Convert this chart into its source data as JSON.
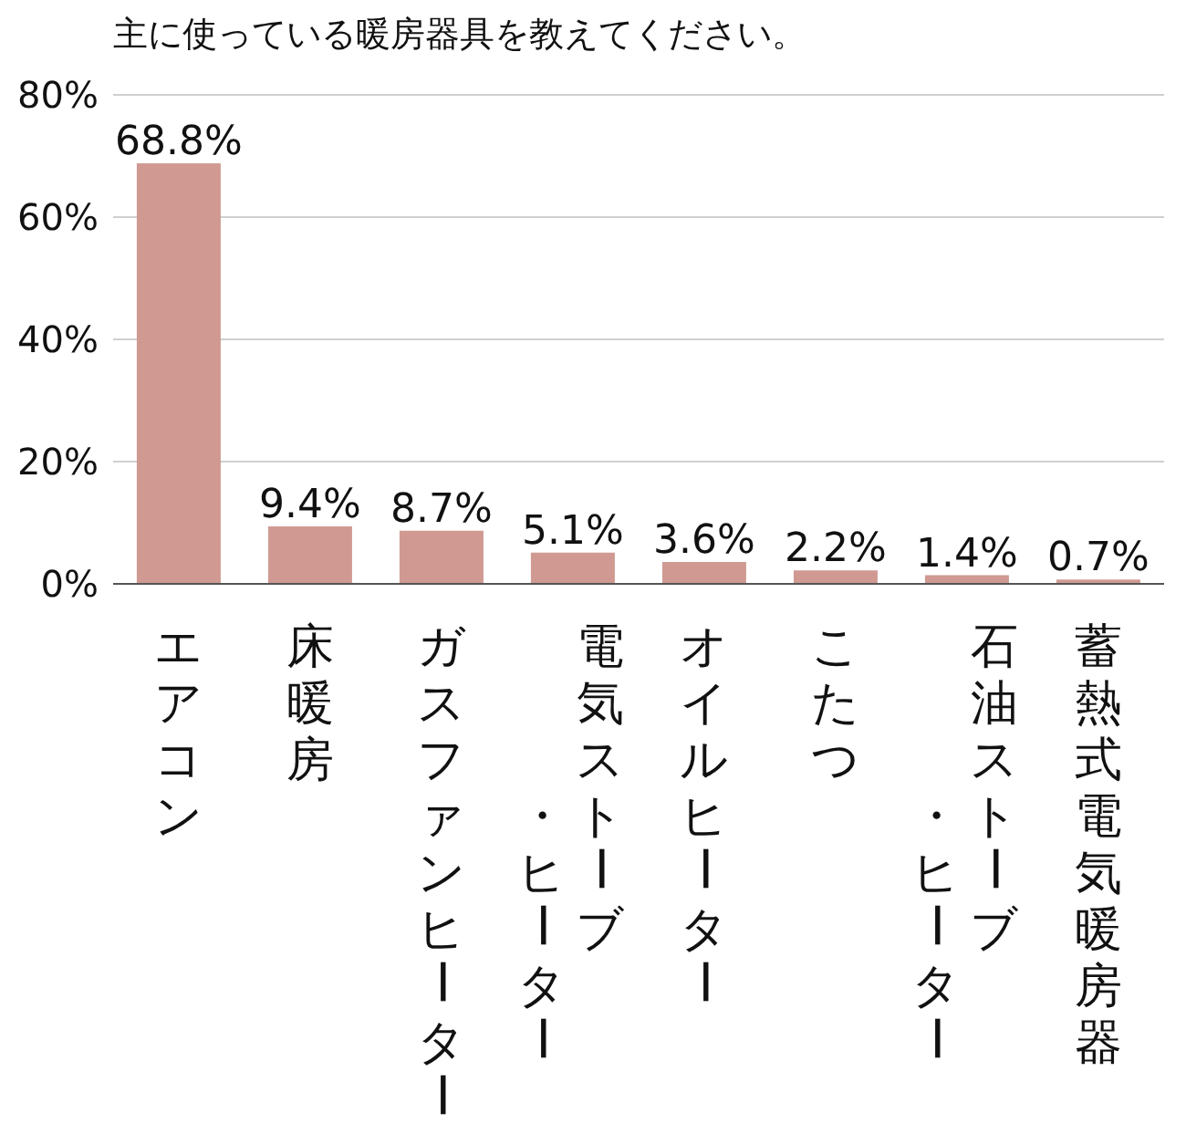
{
  "chart_data": {
    "type": "bar",
    "title": "主に使っている暖房器具を教えてください。",
    "categories": [
      "エアコン",
      "床暖房",
      "ガスファンヒーター",
      "電気ストーブ・ヒーター",
      "オイルヒーター",
      "こたつ",
      "石油ストーブ・ヒーター",
      "蓄熱式電気暖房器"
    ],
    "values": [
      68.8,
      9.4,
      8.7,
      5.1,
      3.6,
      2.2,
      1.4,
      0.7
    ],
    "value_labels": [
      "68.8%",
      "9.4%",
      "8.7%",
      "5.1%",
      "3.6%",
      "2.2%",
      "1.4%",
      "0.7%"
    ],
    "color": "#d09a93",
    "ylim": [
      0,
      80
    ],
    "yticks": [
      {
        "value": 0,
        "label": "0%"
      },
      {
        "value": 20,
        "label": "20%"
      },
      {
        "value": 40,
        "label": "40%"
      },
      {
        "value": 60,
        "label": "60%"
      },
      {
        "value": 80,
        "label": "80%"
      }
    ],
    "grid": "y"
  }
}
